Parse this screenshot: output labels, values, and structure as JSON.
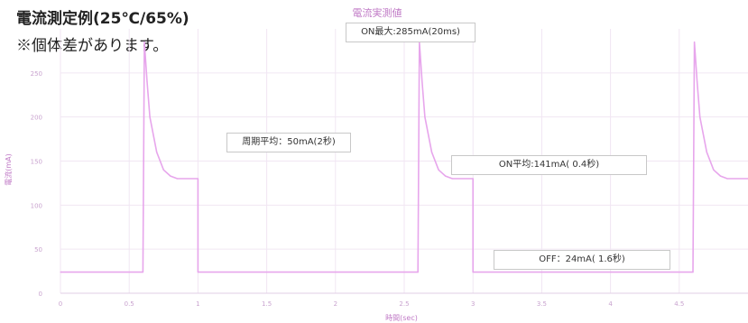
{
  "captions": {
    "line1": "電流測定例(25℃/65%)",
    "line2": "※個体差があります。"
  },
  "chart_data": {
    "type": "line",
    "title": "電流実測値",
    "xlabel": "時間(sec)",
    "ylabel": "電流(mA)",
    "xlim": [
      0,
      5
    ],
    "ylim": [
      0,
      300
    ],
    "x_ticks": [
      "0",
      "0.5",
      "1",
      "1.5",
      "2",
      "2.5",
      "3",
      "3.5",
      "4",
      "4.5"
    ],
    "y_ticks": [
      "0",
      "50",
      "100",
      "150",
      "200",
      "250"
    ],
    "grid": true,
    "series": [
      {
        "color": "#e7a6ec",
        "x": [
          0,
          0.6,
          0.61,
          0.63,
          0.65,
          0.7,
          0.75,
          0.8,
          0.85,
          1.0,
          1.0,
          2.6,
          2.61,
          2.63,
          2.65,
          2.7,
          2.75,
          2.8,
          2.85,
          3.0,
          3.0,
          4.6,
          4.61,
          4.63,
          4.65,
          4.7,
          4.75,
          4.8,
          4.85,
          5.0
        ],
        "y": [
          24,
          24,
          285,
          240,
          200,
          160,
          140,
          133,
          130,
          130,
          24,
          24,
          285,
          240,
          200,
          160,
          140,
          133,
          130,
          130,
          24,
          24,
          285,
          240,
          200,
          160,
          140,
          133,
          130,
          130
        ]
      }
    ],
    "annotations": [
      "ON最大:285mA(20ms)",
      "周期平均：50mA(2秒)",
      "ON平均:141mA( 0.4秒)",
      "OFF：24mA( 1.6秒)"
    ]
  }
}
